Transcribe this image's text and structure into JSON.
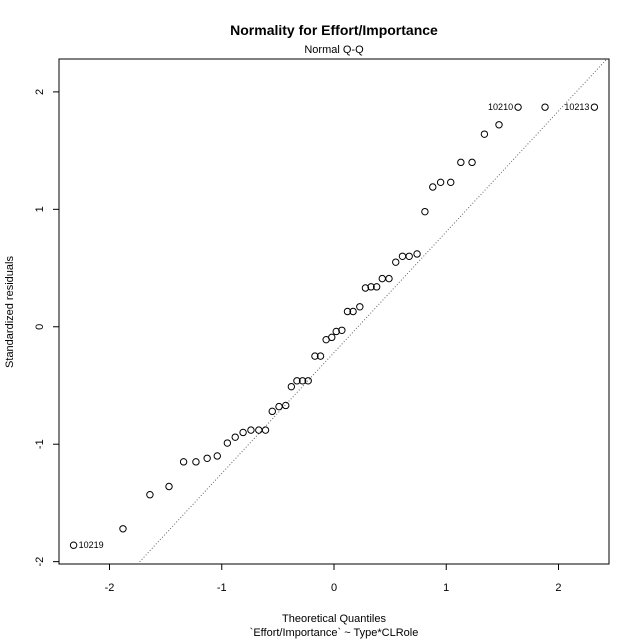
{
  "chart_data": {
    "type": "scatter",
    "title": "Normality for Effort/Importance",
    "subtitle": "Normal Q-Q",
    "xlabel": "Theoretical Quantiles",
    "xlabel2": "`Effort/Importance` ~ Type*CLRole",
    "ylabel": "Standardized residuals",
    "xlim": [
      -2.45,
      2.45
    ],
    "ylim": [
      -2.02,
      2.28
    ],
    "xticks": [
      -2,
      -1,
      0,
      1,
      2
    ],
    "yticks": [
      -2,
      -1,
      0,
      1,
      2
    ],
    "reference_line": {
      "style": "dotted",
      "points": [
        [
          -1.75,
          -2.02
        ],
        [
          2.45,
          2.3
        ]
      ]
    },
    "points": [
      {
        "x": -2.32,
        "y": -1.86,
        "label": "10219"
      },
      {
        "x": -1.88,
        "y": -1.72
      },
      {
        "x": -1.64,
        "y": -1.43
      },
      {
        "x": -1.47,
        "y": -1.36
      },
      {
        "x": -1.34,
        "y": -1.15
      },
      {
        "x": -1.23,
        "y": -1.15
      },
      {
        "x": -1.13,
        "y": -1.12
      },
      {
        "x": -1.04,
        "y": -1.1
      },
      {
        "x": -0.95,
        "y": -0.99
      },
      {
        "x": -0.88,
        "y": -0.94
      },
      {
        "x": -0.81,
        "y": -0.9
      },
      {
        "x": -0.74,
        "y": -0.88
      },
      {
        "x": -0.67,
        "y": -0.88
      },
      {
        "x": -0.61,
        "y": -0.88
      },
      {
        "x": -0.55,
        "y": -0.72
      },
      {
        "x": -0.49,
        "y": -0.68
      },
      {
        "x": -0.43,
        "y": -0.67
      },
      {
        "x": -0.38,
        "y": -0.51
      },
      {
        "x": -0.33,
        "y": -0.46
      },
      {
        "x": -0.28,
        "y": -0.46
      },
      {
        "x": -0.23,
        "y": -0.46
      },
      {
        "x": -0.17,
        "y": -0.25
      },
      {
        "x": -0.12,
        "y": -0.25
      },
      {
        "x": -0.07,
        "y": -0.11
      },
      {
        "x": -0.02,
        "y": -0.09
      },
      {
        "x": 0.02,
        "y": -0.04
      },
      {
        "x": 0.07,
        "y": -0.03
      },
      {
        "x": 0.12,
        "y": 0.13
      },
      {
        "x": 0.17,
        "y": 0.13
      },
      {
        "x": 0.23,
        "y": 0.17
      },
      {
        "x": 0.28,
        "y": 0.33
      },
      {
        "x": 0.33,
        "y": 0.34
      },
      {
        "x": 0.38,
        "y": 0.34
      },
      {
        "x": 0.43,
        "y": 0.41
      },
      {
        "x": 0.49,
        "y": 0.41
      },
      {
        "x": 0.55,
        "y": 0.55
      },
      {
        "x": 0.61,
        "y": 0.6
      },
      {
        "x": 0.67,
        "y": 0.6
      },
      {
        "x": 0.74,
        "y": 0.62
      },
      {
        "x": 0.81,
        "y": 0.98
      },
      {
        "x": 0.88,
        "y": 1.19
      },
      {
        "x": 0.95,
        "y": 1.23
      },
      {
        "x": 1.04,
        "y": 1.23
      },
      {
        "x": 1.13,
        "y": 1.4
      },
      {
        "x": 1.23,
        "y": 1.4
      },
      {
        "x": 1.34,
        "y": 1.64
      },
      {
        "x": 1.47,
        "y": 1.72
      },
      {
        "x": 1.64,
        "y": 1.87,
        "label": "10210"
      },
      {
        "x": 1.88,
        "y": 1.87
      },
      {
        "x": 2.32,
        "y": 1.87,
        "label": "10213"
      }
    ]
  }
}
